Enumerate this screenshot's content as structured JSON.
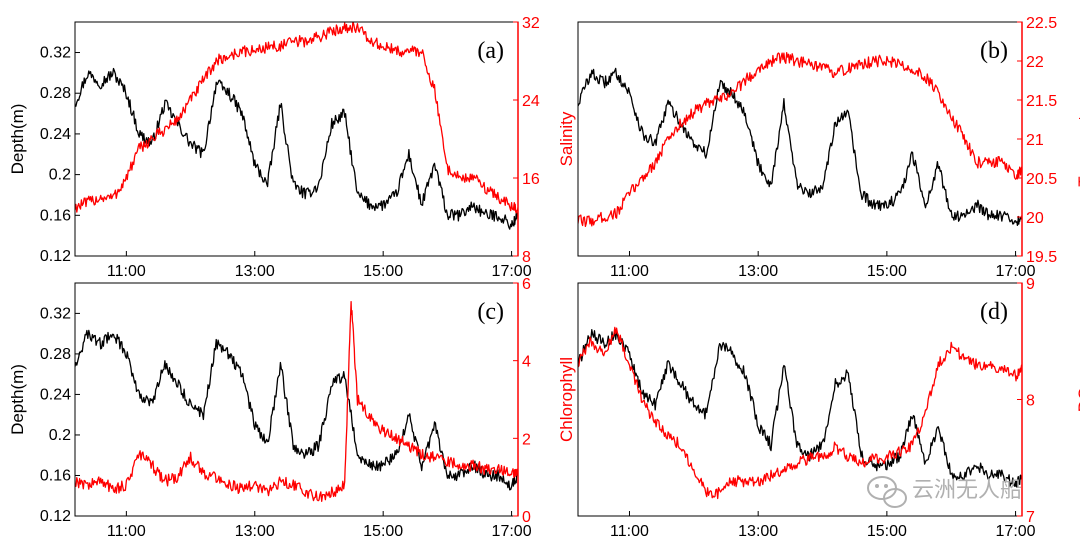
{
  "colors": {
    "depth": "#000000",
    "secondary": "#ff0000",
    "axis": "#000000",
    "watermark": "#a8a8a8"
  },
  "watermark": {
    "text": "云洲无人船",
    "icon": "wechat-icon"
  },
  "chart_data": [
    {
      "type": "line",
      "panel_label": "(a)",
      "xlabel": "",
      "ylabel": "Depth(m)",
      "y2label": "Salinity",
      "x_ticks": [
        "11:00",
        "13:00",
        "15:00",
        "17:00"
      ],
      "x_tick_hours": [
        11,
        13,
        15,
        17
      ],
      "xlim_hours": [
        10.2,
        17.1
      ],
      "ylim": [
        0.12,
        0.35
      ],
      "y_ticks": [
        "0.12",
        "0.16",
        "0.2",
        "0.24",
        "0.28",
        "0.32"
      ],
      "y_tick_values": [
        0.12,
        0.16,
        0.2,
        0.24,
        0.28,
        0.32
      ],
      "y2lim": [
        8,
        32
      ],
      "y2_ticks": [
        "8",
        "16",
        "24",
        "32"
      ],
      "y2_tick_values": [
        8,
        16,
        24,
        32
      ],
      "series": [
        {
          "axis": "left",
          "color": "#000000",
          "x": [
            10.2,
            10.4,
            10.6,
            10.8,
            11.0,
            11.2,
            11.4,
            11.6,
            11.8,
            12.0,
            12.2,
            12.4,
            12.6,
            12.8,
            13.0,
            13.2,
            13.4,
            13.6,
            13.8,
            14.0,
            14.2,
            14.4,
            14.6,
            14.8,
            15.0,
            15.2,
            15.4,
            15.6,
            15.8,
            16.0,
            16.2,
            16.4,
            16.6,
            16.8,
            17.0,
            17.1
          ],
          "y": [
            0.27,
            0.3,
            0.29,
            0.3,
            0.28,
            0.24,
            0.23,
            0.27,
            0.25,
            0.23,
            0.22,
            0.29,
            0.28,
            0.26,
            0.21,
            0.19,
            0.27,
            0.19,
            0.18,
            0.19,
            0.25,
            0.26,
            0.18,
            0.17,
            0.17,
            0.18,
            0.22,
            0.17,
            0.21,
            0.16,
            0.16,
            0.17,
            0.16,
            0.16,
            0.15,
            0.16
          ]
        },
        {
          "axis": "right",
          "color": "#ff0000",
          "x": [
            10.2,
            10.4,
            10.6,
            10.8,
            11.0,
            11.2,
            11.4,
            11.6,
            11.8,
            12.0,
            12.2,
            12.4,
            12.6,
            12.8,
            13.0,
            13.2,
            13.4,
            13.6,
            13.8,
            14.0,
            14.2,
            14.4,
            14.6,
            14.8,
            15.0,
            15.2,
            15.4,
            15.6,
            15.8,
            16.0,
            16.2,
            16.4,
            16.6,
            16.8,
            17.0,
            17.1
          ],
          "y": [
            13,
            13.5,
            14,
            14,
            16,
            19,
            20,
            21,
            22,
            24,
            26,
            28,
            28.5,
            29,
            29,
            29.5,
            29.5,
            30,
            30,
            30.5,
            31,
            31.5,
            31.5,
            30,
            29.5,
            29,
            29,
            29,
            25,
            17,
            16,
            16,
            15,
            14,
            13,
            13
          ]
        }
      ]
    },
    {
      "type": "line",
      "panel_label": "(b)",
      "xlabel": "",
      "ylabel": "",
      "y2label": "Temperature",
      "x_ticks": [
        "11:00",
        "13:00",
        "15:00",
        "17:00"
      ],
      "x_tick_hours": [
        11,
        13,
        15,
        17
      ],
      "xlim_hours": [
        10.2,
        17.1
      ],
      "ylim": [
        0.12,
        0.35
      ],
      "y_ticks": [],
      "y_tick_values": [],
      "y2lim": [
        19.5,
        22.5
      ],
      "y2_ticks": [
        "19.5",
        "20",
        "20.5",
        "21",
        "21.5",
        "22",
        "22.5"
      ],
      "y2_tick_values": [
        19.5,
        20,
        20.5,
        21,
        21.5,
        22,
        22.5
      ],
      "series": [
        {
          "axis": "left",
          "color": "#000000",
          "x": [
            10.2,
            10.4,
            10.6,
            10.8,
            11.0,
            11.2,
            11.4,
            11.6,
            11.8,
            12.0,
            12.2,
            12.4,
            12.6,
            12.8,
            13.0,
            13.2,
            13.4,
            13.6,
            13.8,
            14.0,
            14.2,
            14.4,
            14.6,
            14.8,
            15.0,
            15.2,
            15.4,
            15.6,
            15.8,
            16.0,
            16.2,
            16.4,
            16.6,
            16.8,
            17.0,
            17.1
          ],
          "y": [
            0.27,
            0.3,
            0.29,
            0.3,
            0.28,
            0.24,
            0.23,
            0.27,
            0.25,
            0.23,
            0.22,
            0.29,
            0.28,
            0.26,
            0.21,
            0.19,
            0.27,
            0.19,
            0.18,
            0.19,
            0.25,
            0.26,
            0.18,
            0.17,
            0.17,
            0.18,
            0.22,
            0.17,
            0.21,
            0.16,
            0.16,
            0.17,
            0.16,
            0.16,
            0.15,
            0.16
          ]
        },
        {
          "axis": "right",
          "color": "#ff0000",
          "x": [
            10.2,
            10.4,
            10.6,
            10.8,
            11.0,
            11.2,
            11.4,
            11.6,
            11.8,
            12.0,
            12.2,
            12.4,
            12.6,
            12.8,
            13.0,
            13.2,
            13.4,
            13.6,
            13.8,
            14.0,
            14.2,
            14.4,
            14.6,
            14.8,
            15.0,
            15.2,
            15.4,
            15.6,
            15.8,
            16.0,
            16.2,
            16.4,
            16.6,
            16.8,
            17.0,
            17.1
          ],
          "y": [
            19.95,
            19.95,
            20.0,
            20.05,
            20.3,
            20.5,
            20.7,
            21.0,
            21.2,
            21.35,
            21.45,
            21.5,
            21.6,
            21.75,
            21.9,
            22.0,
            22.05,
            22.0,
            21.95,
            21.9,
            21.85,
            21.9,
            21.95,
            22.0,
            22.0,
            21.95,
            21.9,
            21.8,
            21.6,
            21.3,
            21.0,
            20.7,
            20.7,
            20.7,
            20.5,
            20.6
          ]
        }
      ]
    },
    {
      "type": "line",
      "panel_label": "(c)",
      "xlabel": "",
      "ylabel": "Depth(m)",
      "y2label": "Chlorophyll",
      "x_ticks": [
        "11:00",
        "13:00",
        "15:00",
        "17:00"
      ],
      "x_tick_hours": [
        11,
        13,
        15,
        17
      ],
      "xlim_hours": [
        10.2,
        17.1
      ],
      "ylim": [
        0.12,
        0.35
      ],
      "y_ticks": [
        "0.12",
        "0.16",
        "0.2",
        "0.24",
        "0.28",
        "0.32"
      ],
      "y_tick_values": [
        0.12,
        0.16,
        0.2,
        0.24,
        0.28,
        0.32
      ],
      "y2lim": [
        0,
        6
      ],
      "y2_ticks": [
        "0",
        "2",
        "4",
        "6"
      ],
      "y2_tick_values": [
        0,
        2,
        4,
        6
      ],
      "series": [
        {
          "axis": "left",
          "color": "#000000",
          "x": [
            10.2,
            10.4,
            10.6,
            10.8,
            11.0,
            11.2,
            11.4,
            11.6,
            11.8,
            12.0,
            12.2,
            12.4,
            12.6,
            12.8,
            13.0,
            13.2,
            13.4,
            13.6,
            13.8,
            14.0,
            14.2,
            14.4,
            14.6,
            14.8,
            15.0,
            15.2,
            15.4,
            15.6,
            15.8,
            16.0,
            16.2,
            16.4,
            16.6,
            16.8,
            17.0,
            17.1
          ],
          "y": [
            0.27,
            0.3,
            0.29,
            0.3,
            0.28,
            0.24,
            0.23,
            0.27,
            0.25,
            0.23,
            0.22,
            0.29,
            0.28,
            0.26,
            0.21,
            0.19,
            0.27,
            0.19,
            0.18,
            0.19,
            0.25,
            0.26,
            0.18,
            0.17,
            0.17,
            0.18,
            0.22,
            0.17,
            0.21,
            0.16,
            0.16,
            0.17,
            0.16,
            0.16,
            0.15,
            0.16
          ]
        },
        {
          "axis": "right",
          "color": "#ff0000",
          "x": [
            10.2,
            10.4,
            10.6,
            10.8,
            11.0,
            11.2,
            11.4,
            11.6,
            11.8,
            12.0,
            12.2,
            12.4,
            12.6,
            12.8,
            13.0,
            13.2,
            13.4,
            13.6,
            13.8,
            14.0,
            14.2,
            14.4,
            14.5,
            14.6,
            14.8,
            15.0,
            15.2,
            15.4,
            15.6,
            15.8,
            16.0,
            16.2,
            16.4,
            16.6,
            16.8,
            17.0,
            17.1
          ],
          "y": [
            0.9,
            0.8,
            0.9,
            0.7,
            0.8,
            1.6,
            1.3,
            0.9,
            1.0,
            1.5,
            1.1,
            1.0,
            0.8,
            0.7,
            0.8,
            0.6,
            0.9,
            0.8,
            0.6,
            0.5,
            0.6,
            0.8,
            5.5,
            3.0,
            2.5,
            2.2,
            2.0,
            1.8,
            1.6,
            1.5,
            1.4,
            1.3,
            1.3,
            1.2,
            1.2,
            1.1,
            1.2
          ]
        }
      ]
    },
    {
      "type": "line",
      "panel_label": "(d)",
      "xlabel": "",
      "ylabel": "",
      "y2label": "DO",
      "x_ticks": [
        "11:00",
        "13:00",
        "15:00",
        "17:00"
      ],
      "x_tick_hours": [
        11,
        13,
        15,
        17
      ],
      "xlim_hours": [
        10.2,
        17.1
      ],
      "ylim": [
        0.12,
        0.35
      ],
      "y_ticks": [],
      "y_tick_values": [],
      "y2lim": [
        7,
        9
      ],
      "y2_ticks": [
        "7",
        "8",
        "9"
      ],
      "y2_tick_values": [
        7,
        8,
        9
      ],
      "series": [
        {
          "axis": "left",
          "color": "#000000",
          "x": [
            10.2,
            10.4,
            10.6,
            10.8,
            11.0,
            11.2,
            11.4,
            11.6,
            11.8,
            12.0,
            12.2,
            12.4,
            12.6,
            12.8,
            13.0,
            13.2,
            13.4,
            13.6,
            13.8,
            14.0,
            14.2,
            14.4,
            14.6,
            14.8,
            15.0,
            15.2,
            15.4,
            15.6,
            15.8,
            16.0,
            16.2,
            16.4,
            16.6,
            16.8,
            17.0,
            17.1
          ],
          "y": [
            0.27,
            0.3,
            0.29,
            0.3,
            0.28,
            0.24,
            0.23,
            0.27,
            0.25,
            0.23,
            0.22,
            0.29,
            0.28,
            0.26,
            0.21,
            0.19,
            0.27,
            0.19,
            0.18,
            0.19,
            0.25,
            0.26,
            0.18,
            0.17,
            0.17,
            0.18,
            0.22,
            0.17,
            0.21,
            0.16,
            0.16,
            0.17,
            0.16,
            0.16,
            0.15,
            0.16
          ]
        },
        {
          "axis": "right",
          "color": "#ff0000",
          "x": [
            10.2,
            10.4,
            10.6,
            10.8,
            11.0,
            11.2,
            11.4,
            11.6,
            11.8,
            12.0,
            12.2,
            12.4,
            12.6,
            12.8,
            13.0,
            13.2,
            13.4,
            13.6,
            13.8,
            14.0,
            14.2,
            14.4,
            14.6,
            14.8,
            15.0,
            15.2,
            15.4,
            15.6,
            15.8,
            16.0,
            16.2,
            16.4,
            16.6,
            16.8,
            17.0,
            17.1
          ],
          "y": [
            8.3,
            8.5,
            8.4,
            8.6,
            8.3,
            8.0,
            7.8,
            7.7,
            7.6,
            7.4,
            7.2,
            7.2,
            7.3,
            7.3,
            7.3,
            7.35,
            7.4,
            7.45,
            7.5,
            7.5,
            7.6,
            7.5,
            7.45,
            7.5,
            7.5,
            7.55,
            7.6,
            7.9,
            8.3,
            8.45,
            8.35,
            8.3,
            8.3,
            8.25,
            8.2,
            8.25
          ]
        }
      ]
    }
  ]
}
